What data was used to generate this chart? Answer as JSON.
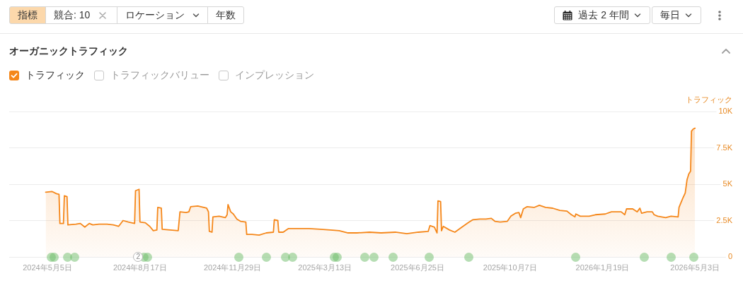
{
  "chart_data": {
    "type": "area",
    "title": "オーガニックトラフィック",
    "ylabel": "トラフィック",
    "annotations": [
      "指標",
      "競合: 10",
      "ロケーション",
      "年数",
      "過去 2 年間",
      "毎日",
      "トラフィックバリュー",
      "インプレッション",
      {
        "text": "2",
        "x": "2024-08-15",
        "y": 0
      }
    ],
    "legend": "top left",
    "grid": "y",
    "xlim": [
      "2024-03-23",
      "2026-06-14"
    ],
    "xticks": [
      {
        "value": "2024-05-05",
        "label": "2024年5月5日"
      },
      {
        "value": "2024-08-17",
        "label": "2024年8月17日"
      },
      {
        "value": "2024-11-29",
        "label": "2024年11月29日"
      },
      {
        "value": "2025-03-13",
        "label": "2025年3月13日"
      },
      {
        "value": "2025-06-25",
        "label": "2025年6月25日"
      },
      {
        "value": "2025-10-07",
        "label": "2025年10月7日"
      },
      {
        "value": "2026-01-19",
        "label": "2026年1月19日"
      },
      {
        "value": "2026-05-03",
        "label": "2026年5月3日"
      }
    ],
    "ylim": [
      0,
      10000
    ],
    "yticks": [
      0,
      {
        "value": 2500,
        "label": "2.5K"
      },
      {
        "value": 5000,
        "label": "5K"
      },
      {
        "value": 7500,
        "label": "7.5K"
      },
      {
        "value": 10000,
        "label": "10K"
      }
    ],
    "x": [
      "2024-05-03",
      "2024-05-10",
      "2024-05-15",
      "2024-05-18",
      "2024-05-19",
      "2024-05-23",
      "2024-05-24",
      "2024-05-27",
      "2024-05-28",
      "2024-06-06",
      "2024-06-11",
      "2024-06-16",
      "2024-06-21",
      "2024-06-25",
      "2024-07-02",
      "2024-07-11",
      "2024-07-18",
      "2024-07-24",
      "2024-07-29",
      "2024-08-04",
      "2024-08-11",
      "2024-08-12",
      "2024-08-16",
      "2024-08-17",
      "2024-08-23",
      "2024-08-28",
      "2024-09-01",
      "2024-09-05",
      "2024-09-06",
      "2024-09-10",
      "2024-09-11",
      "2024-09-20",
      "2024-09-29",
      "2024-10-01",
      "2024-10-08",
      "2024-10-11",
      "2024-10-13",
      "2024-10-21",
      "2024-10-31",
      "2024-11-02",
      "2024-11-03",
      "2024-11-06",
      "2024-11-07",
      "2024-11-14",
      "2024-11-21",
      "2024-11-23",
      "2024-11-24",
      "2024-11-27",
      "2024-11-30",
      "2024-12-04",
      "2024-12-08",
      "2024-12-14",
      "2024-12-15",
      "2024-12-21",
      "2024-12-29",
      "2025-01-06",
      "2025-01-14",
      "2025-01-15",
      "2025-01-19",
      "2025-01-20",
      "2025-01-25",
      "2025-01-31",
      "2025-02-10",
      "2025-02-23",
      "2025-03-08",
      "2025-03-19",
      "2025-03-29",
      "2025-04-08",
      "2025-04-18",
      "2025-05-02",
      "2025-05-15",
      "2025-05-31",
      "2025-06-13",
      "2025-06-26",
      "2025-07-07",
      "2025-07-09",
      "2025-07-14",
      "2025-07-17",
      "2025-07-18",
      "2025-07-21",
      "2025-07-22",
      "2025-07-24",
      "2025-07-31",
      "2025-08-06",
      "2025-08-14",
      "2025-08-21",
      "2025-08-26",
      "2025-09-03",
      "2025-09-10",
      "2025-09-16",
      "2025-09-20",
      "2025-09-26",
      "2025-10-04",
      "2025-10-08",
      "2025-10-13",
      "2025-10-17",
      "2025-10-19",
      "2025-10-22",
      "2025-10-26",
      "2025-11-03",
      "2025-11-09",
      "2025-11-16",
      "2025-11-24",
      "2025-12-02",
      "2025-12-10",
      "2025-12-15",
      "2025-12-19",
      "2025-12-20",
      "2025-12-25",
      "2026-01-04",
      "2026-01-11",
      "2026-01-22",
      "2026-01-29",
      "2026-02-09",
      "2026-02-13",
      "2026-02-15",
      "2026-02-22",
      "2026-02-27",
      "2026-03-02",
      "2026-03-04",
      "2026-03-10",
      "2026-03-16",
      "2026-03-18",
      "2026-03-22",
      "2026-03-31",
      "2026-04-06",
      "2026-04-14",
      "2026-04-15",
      "2026-04-19",
      "2026-04-22",
      "2026-04-24",
      "2026-04-26",
      "2026-04-28",
      "2026-04-29",
      "2026-05-01",
      "2026-05-03"
    ],
    "series": [
      {
        "name": "トラフィック",
        "color": "#f5871a",
        "values": [
          4450,
          4500,
          4350,
          4300,
          2300,
          2300,
          4200,
          4150,
          2200,
          2250,
          2300,
          2050,
          2300,
          2200,
          2250,
          2250,
          2200,
          2100,
          2500,
          2400,
          2300,
          4550,
          4650,
          2400,
          2350,
          2100,
          1800,
          1850,
          3400,
          3350,
          1900,
          1850,
          1800,
          3100,
          3050,
          3100,
          3450,
          3500,
          3350,
          3100,
          1750,
          1700,
          2750,
          2800,
          2700,
          2900,
          3600,
          3100,
          2950,
          2600,
          2450,
          2400,
          1550,
          1550,
          1500,
          1650,
          1700,
          2550,
          2500,
          1700,
          1700,
          1950,
          1950,
          1950,
          1900,
          1850,
          1800,
          1650,
          1650,
          1700,
          1650,
          1700,
          1600,
          1700,
          1750,
          2150,
          2050,
          1650,
          3850,
          3800,
          1800,
          2100,
          1850,
          1700,
          2050,
          2350,
          2550,
          2600,
          2600,
          2650,
          2450,
          2400,
          2450,
          2800,
          3000,
          3050,
          2700,
          3300,
          3450,
          3400,
          3550,
          3400,
          3350,
          3200,
          3150,
          2900,
          2750,
          2950,
          2800,
          2800,
          2900,
          2950,
          3100,
          3100,
          2900,
          3300,
          3300,
          3100,
          3350,
          3000,
          3100,
          3100,
          2900,
          2800,
          2700,
          2800,
          2750,
          3400,
          4000,
          4400,
          5300,
          5700,
          5900,
          8650,
          8800,
          8850
        ]
      }
    ]
  }
}
